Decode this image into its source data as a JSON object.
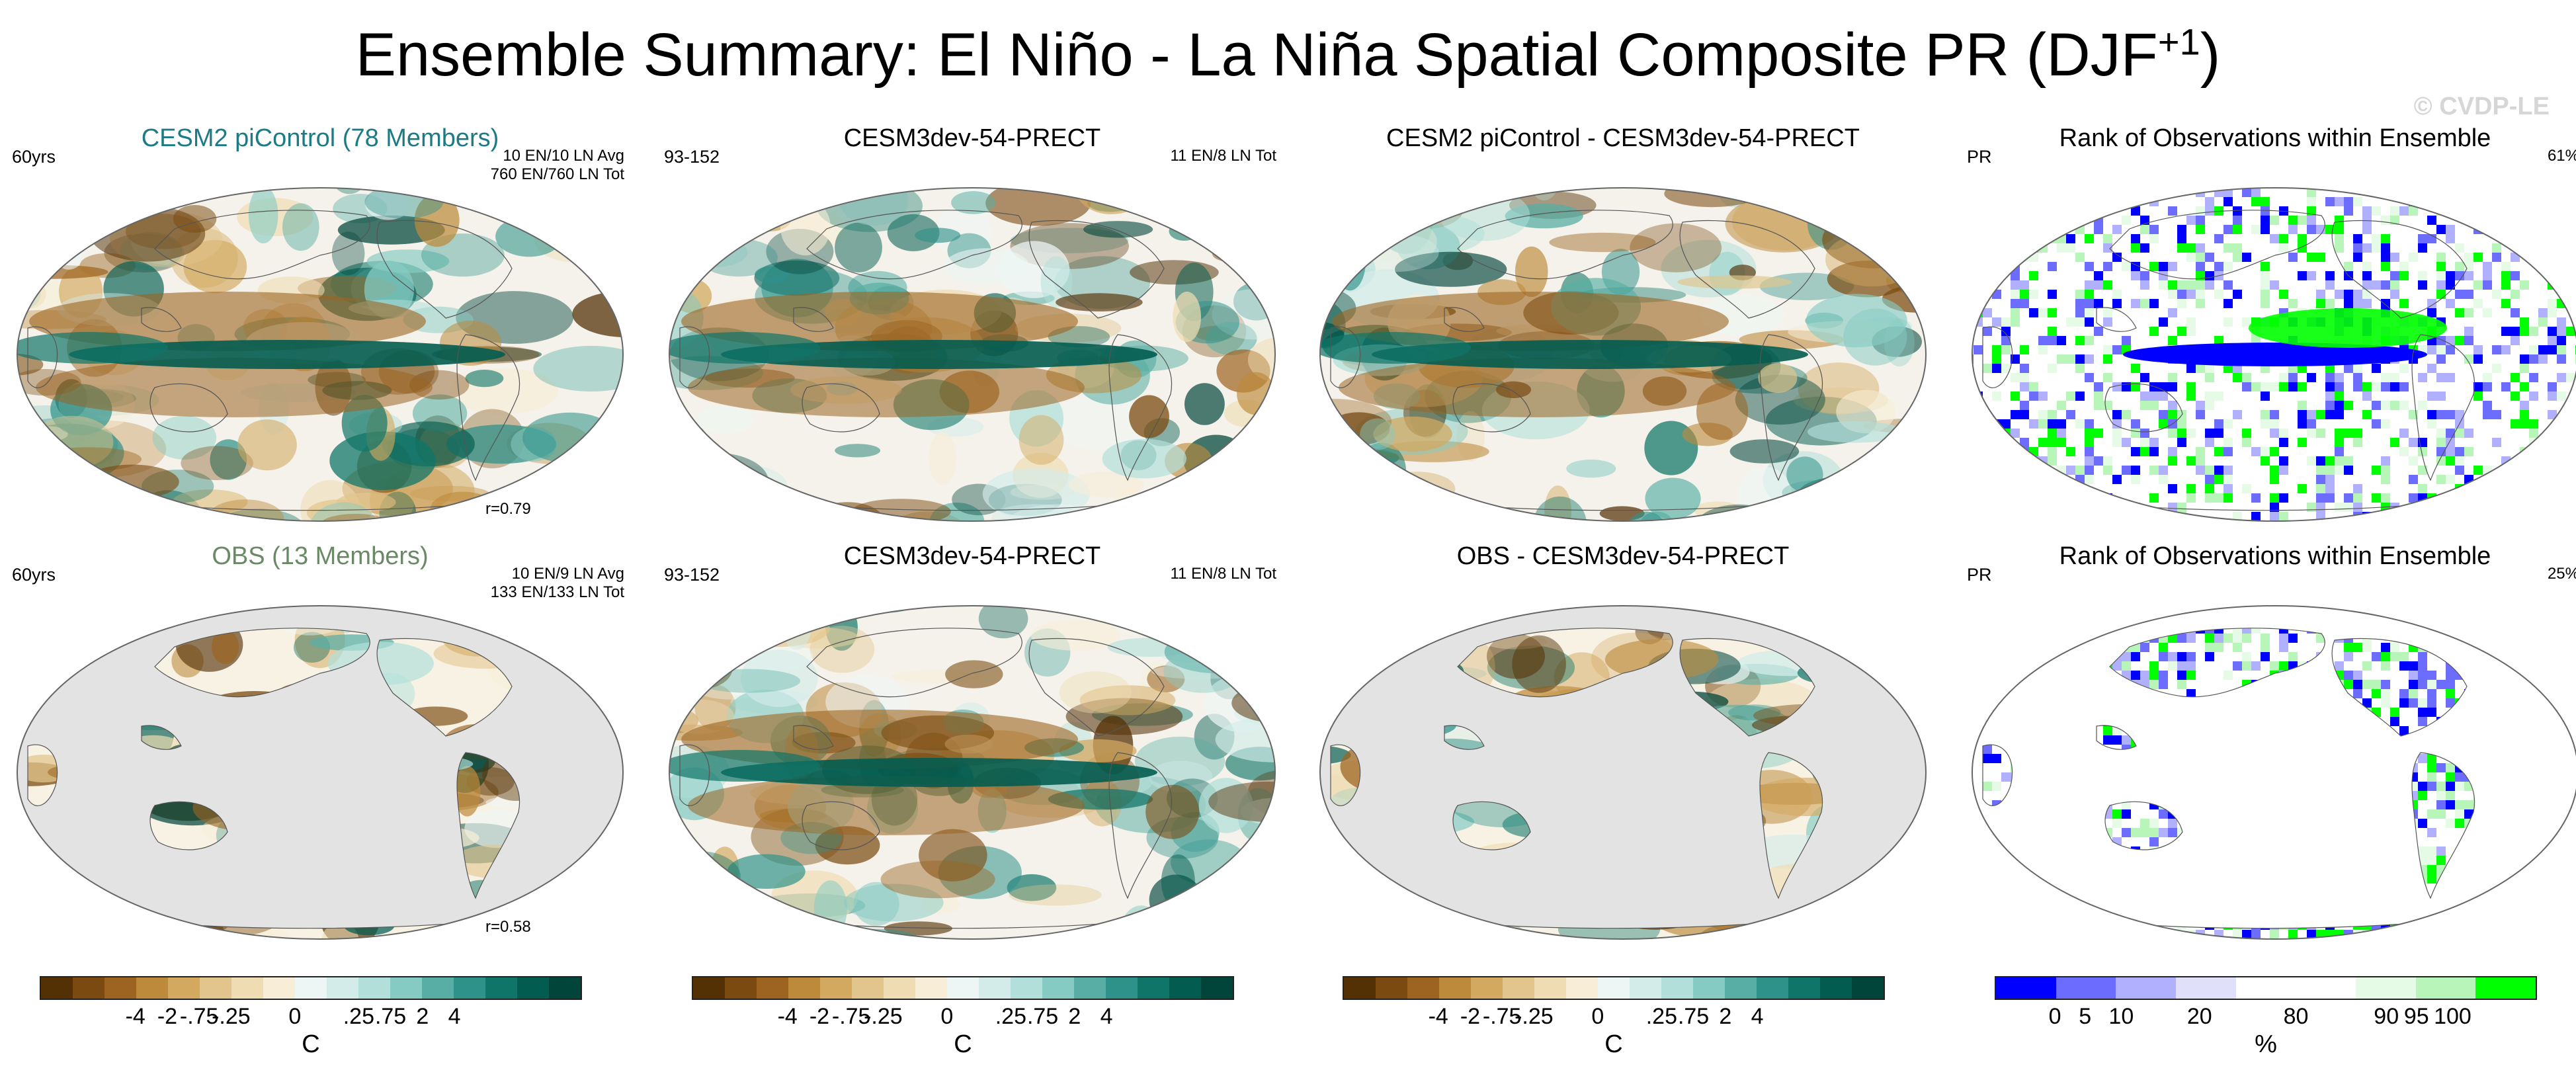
{
  "figure": {
    "title": "Ensemble Summary: El Niño - La Niña Spatial Composite PR (DJF",
    "title_sup": "+1",
    "title_close": ")",
    "watermark": "© CVDP-LE"
  },
  "panels": [
    {
      "id": "r1c1",
      "title": "CESM2 piControl (78 Members)",
      "left": "60yrs",
      "right": [
        "10 EN/10 LN Avg",
        "760 EN/760 LN Tot"
      ],
      "corr": "r=0.79",
      "style": "diverging-full"
    },
    {
      "id": "r1c2",
      "title": "CESM3dev-54-PRECT",
      "left": "93-152",
      "right": [
        "11 EN/8 LN Tot"
      ],
      "corr": "",
      "style": "diverging-full"
    },
    {
      "id": "r1c3",
      "title": "CESM2 piControl - CESM3dev-54-PRECT",
      "left": "",
      "right": [],
      "corr": "",
      "style": "diverging-full"
    },
    {
      "id": "r1c4",
      "title": "Rank of Observations within Ensemble",
      "left": "PR",
      "right": [
        "61%"
      ],
      "corr": "",
      "style": "rank-full"
    },
    {
      "id": "r2c1",
      "title": "OBS (13 Members)",
      "left": "60yrs",
      "right": [
        "10 EN/9 LN Avg",
        "133 EN/133 LN Tot"
      ],
      "corr": "r=0.58",
      "style": "diverging-land"
    },
    {
      "id": "r2c2",
      "title": "CESM3dev-54-PRECT",
      "left": "93-152",
      "right": [
        "11 EN/8 LN Tot"
      ],
      "corr": "",
      "style": "diverging-full"
    },
    {
      "id": "r2c3",
      "title": "OBS - CESM3dev-54-PRECT",
      "left": "",
      "right": [],
      "corr": "",
      "style": "diverging-land"
    },
    {
      "id": "r2c4",
      "title": "Rank of Observations within Ensemble",
      "left": "PR",
      "right": [
        "25%"
      ],
      "corr": "",
      "style": "rank-land"
    }
  ],
  "colorbars": {
    "diverging": {
      "colors": [
        "#543005",
        "#7b4a10",
        "#9c6420",
        "#bd8a3c",
        "#d3a960",
        "#e2c58c",
        "#efdcb2",
        "#f8eed8",
        "#eef6f5",
        "#d3ecea",
        "#b2dfda",
        "#86cbc3",
        "#58aea4",
        "#2f928a",
        "#0f7568",
        "#035c50",
        "#00443a"
      ],
      "labels": [
        "-4",
        "-2",
        "-.75",
        "-.25",
        "0",
        ".25",
        ".75",
        "2",
        "4"
      ],
      "unit": "C"
    },
    "rank": {
      "colors": [
        "#0000ff",
        "#6c6cff",
        "#b0b0ff",
        "#e0e0fa",
        "#ffffff",
        "#ffffff",
        "#e6fbe6",
        "#b8f5b8",
        "#00ff00"
      ],
      "labels": [
        "0",
        "5",
        "10",
        "20",
        "80",
        "90",
        "95",
        "100"
      ],
      "unit": "%"
    }
  }
}
